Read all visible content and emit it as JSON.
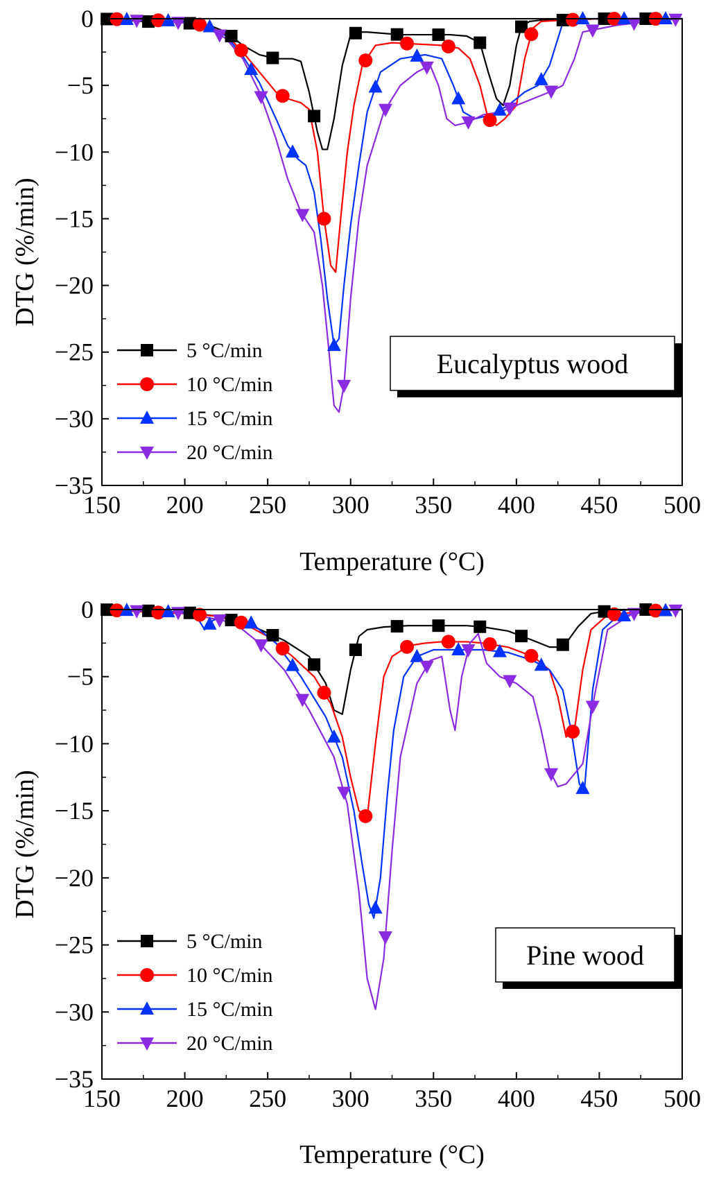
{
  "chart_data": [
    {
      "type": "line",
      "xlabel": "Temperature (°C)",
      "ylabel": "DTG (%/min)",
      "xlim": [
        150,
        500
      ],
      "ylim": [
        -35,
        0
      ],
      "xticks": [
        "150",
        "200",
        "250",
        "300",
        "350",
        "400",
        "450",
        "500"
      ],
      "yticks": [
        "0",
        "−5",
        "−10",
        "−15",
        "−20",
        "−25",
        "−30",
        "−35"
      ],
      "annotation": "Eucalyptus wood",
      "legend_position": "lower-left",
      "grid": false,
      "series": [
        {
          "name": "5 °C/min",
          "color": "#000000",
          "marker": "square",
          "x": [
            150,
            175,
            200,
            215,
            225,
            235,
            245,
            255,
            265,
            270,
            275,
            280,
            283,
            286,
            290,
            295,
            300,
            305,
            310,
            320,
            330,
            340,
            350,
            360,
            370,
            378,
            383,
            388,
            392,
            396,
            400,
            403,
            408,
            415,
            430,
            450,
            475,
            500
          ],
          "y": [
            0,
            -0.2,
            -0.3,
            -0.5,
            -1.0,
            -2.0,
            -2.7,
            -3.0,
            -3.0,
            -3.2,
            -5.5,
            -8.5,
            -9.8,
            -9.8,
            -7.5,
            -3.5,
            -1.2,
            -1.0,
            -1.0,
            -1.1,
            -1.2,
            -1.2,
            -1.2,
            -1.2,
            -1.3,
            -1.8,
            -4.0,
            -6.0,
            -6.5,
            -5.0,
            -2.0,
            -0.6,
            -0.2,
            -0.1,
            -0.1,
            0,
            0,
            0
          ]
        },
        {
          "name": "10 °C/min",
          "color": "#ff0000",
          "marker": "circle",
          "x": [
            150,
            180,
            200,
            215,
            225,
            235,
            245,
            255,
            262,
            270,
            275,
            280,
            284,
            288,
            291,
            294,
            298,
            302,
            307,
            315,
            325,
            340,
            355,
            365,
            372,
            378,
            383,
            388,
            393,
            400,
            405,
            410,
            415,
            430,
            450,
            475,
            500
          ],
          "y": [
            0,
            -0.1,
            -0.2,
            -0.6,
            -1.2,
            -2.5,
            -4.0,
            -5.5,
            -6.0,
            -6.3,
            -6.8,
            -10.0,
            -15.0,
            -18.5,
            -19.0,
            -15.0,
            -10.0,
            -6.5,
            -3.5,
            -2.0,
            -1.8,
            -1.9,
            -2.0,
            -2.2,
            -3.0,
            -5.0,
            -7.5,
            -8.0,
            -7.5,
            -6.5,
            -3.0,
            -0.7,
            -0.2,
            -0.1,
            0,
            0,
            0
          ]
        },
        {
          "name": "15 °C/min",
          "color": "#0033ff",
          "marker": "triangle-up",
          "x": [
            150,
            180,
            200,
            215,
            225,
            235,
            245,
            255,
            262,
            268,
            273,
            278,
            282,
            286,
            290,
            293,
            296,
            300,
            305,
            310,
            318,
            330,
            345,
            355,
            362,
            368,
            375,
            385,
            395,
            405,
            413,
            420,
            428,
            440,
            460,
            480,
            500
          ],
          "y": [
            0,
            -0.1,
            -0.2,
            -0.6,
            -1.3,
            -2.8,
            -4.8,
            -7.5,
            -9.5,
            -10.5,
            -11.0,
            -13.0,
            -16.5,
            -21.0,
            -24.5,
            -24.0,
            -20.0,
            -15.5,
            -11.0,
            -7.0,
            -4.0,
            -3.0,
            -2.7,
            -3.0,
            -5.0,
            -7.0,
            -7.5,
            -7.2,
            -6.5,
            -5.5,
            -5.0,
            -3.5,
            -0.3,
            0,
            0,
            0,
            0
          ]
        },
        {
          "name": "20 °C/min",
          "color": "#8a2be2",
          "marker": "triangle-down",
          "x": [
            150,
            185,
            200,
            215,
            225,
            235,
            245,
            255,
            262,
            270,
            278,
            283,
            287,
            290,
            293,
            296,
            300,
            305,
            310,
            320,
            330,
            340,
            348,
            353,
            358,
            363,
            370,
            380,
            390,
            400,
            410,
            420,
            428,
            435,
            440,
            460,
            480,
            500
          ],
          "y": [
            0,
            -0.2,
            -0.3,
            -0.8,
            -1.5,
            -3.0,
            -5.5,
            -9.0,
            -12.0,
            -14.5,
            -16.0,
            -20.0,
            -25.0,
            -29.0,
            -29.5,
            -27.5,
            -21.0,
            -15.0,
            -11.0,
            -7.0,
            -5.0,
            -4.0,
            -3.5,
            -5.0,
            -7.5,
            -8.0,
            -7.8,
            -7.2,
            -7.0,
            -6.5,
            -6.0,
            -5.5,
            -5.0,
            -3.0,
            -1.0,
            -0.5,
            -0.2,
            0
          ]
        }
      ]
    },
    {
      "type": "line",
      "xlabel": "Temperature (°C)",
      "ylabel": "DTG (%/min)",
      "xlim": [
        150,
        500
      ],
      "ylim": [
        -35,
        0
      ],
      "xticks": [
        "150",
        "200",
        "250",
        "300",
        "350",
        "400",
        "450",
        "500"
      ],
      "yticks": [
        "0",
        "−5",
        "−10",
        "−15",
        "−20",
        "−25",
        "−30",
        "−35"
      ],
      "annotation": "Pine wood",
      "legend_position": "lower-left",
      "grid": false,
      "series": [
        {
          "name": "5 °C/min",
          "color": "#000000",
          "marker": "square",
          "x": [
            150,
            180,
            200,
            220,
            240,
            260,
            275,
            285,
            290,
            295,
            300,
            305,
            310,
            320,
            335,
            350,
            370,
            380,
            395,
            410,
            420,
            425,
            430,
            437,
            445,
            455,
            470,
            500
          ],
          "y": [
            0,
            -0.1,
            -0.2,
            -0.5,
            -1.2,
            -2.3,
            -3.5,
            -5.5,
            -7.5,
            -7.8,
            -4.5,
            -2.0,
            -1.5,
            -1.3,
            -1.2,
            -1.2,
            -1.2,
            -1.3,
            -1.6,
            -2.3,
            -2.8,
            -2.8,
            -2.5,
            -1.3,
            -0.3,
            -0.1,
            0,
            0
          ]
        },
        {
          "name": "10 °C/min",
          "color": "#ff0000",
          "marker": "circle",
          "x": [
            150,
            180,
            200,
            220,
            235,
            250,
            265,
            278,
            288,
            295,
            300,
            305,
            310,
            315,
            320,
            325,
            335,
            345,
            355,
            370,
            380,
            395,
            410,
            420,
            425,
            430,
            435,
            440,
            445,
            455,
            480,
            500
          ],
          "y": [
            0,
            -0.2,
            -0.3,
            -0.5,
            -1.0,
            -2.0,
            -3.5,
            -5.0,
            -7.0,
            -9.5,
            -12.5,
            -15.0,
            -15.5,
            -10.0,
            -5.0,
            -3.5,
            -2.7,
            -2.5,
            -2.4,
            -2.4,
            -2.5,
            -2.8,
            -3.5,
            -4.5,
            -6.5,
            -9.5,
            -9.0,
            -4.5,
            -1.5,
            -0.4,
            -0.1,
            0
          ]
        },
        {
          "name": "15 °C/min",
          "color": "#0033ff",
          "marker": "triangle-up",
          "x": [
            150,
            200,
            207,
            212,
            217,
            225,
            240,
            255,
            270,
            285,
            295,
            302,
            307,
            311,
            314,
            318,
            322,
            326,
            332,
            340,
            350,
            365,
            380,
            395,
            410,
            420,
            428,
            433,
            438,
            441,
            446,
            452,
            460,
            475,
            500
          ],
          "y": [
            0,
            -0.2,
            -0.5,
            -1.5,
            -0.8,
            -0.5,
            -1.0,
            -2.5,
            -5.0,
            -8.0,
            -11.0,
            -15.0,
            -19.0,
            -22.0,
            -23.0,
            -20.0,
            -14.0,
            -9.0,
            -5.0,
            -3.5,
            -3.0,
            -3.0,
            -3.0,
            -3.2,
            -3.8,
            -4.5,
            -6.0,
            -9.0,
            -13.0,
            -13.5,
            -6.0,
            -1.5,
            -0.6,
            -0.2,
            0
          ]
        },
        {
          "name": "20 °C/min",
          "color": "#8a2be2",
          "marker": "triangle-down",
          "x": [
            150,
            195,
            210,
            230,
            245,
            260,
            275,
            290,
            298,
            305,
            310,
            315,
            320,
            325,
            330,
            340,
            348,
            355,
            360,
            363,
            367,
            372,
            377,
            382,
            390,
            400,
            410,
            415,
            420,
            425,
            430,
            440,
            447,
            455,
            470,
            500
          ],
          "y": [
            0,
            -0.2,
            -0.5,
            -1.0,
            -2.5,
            -4.5,
            -7.5,
            -11.0,
            -14.5,
            -21.0,
            -27.5,
            -29.8,
            -26.0,
            -18.0,
            -11.0,
            -5.5,
            -3.8,
            -3.5,
            -7.5,
            -9.0,
            -5.0,
            -2.5,
            -1.8,
            -4.0,
            -5.0,
            -5.5,
            -6.5,
            -9.0,
            -12.0,
            -13.2,
            -13.0,
            -11.5,
            -6.5,
            -1.5,
            -0.3,
            0
          ]
        }
      ]
    }
  ]
}
